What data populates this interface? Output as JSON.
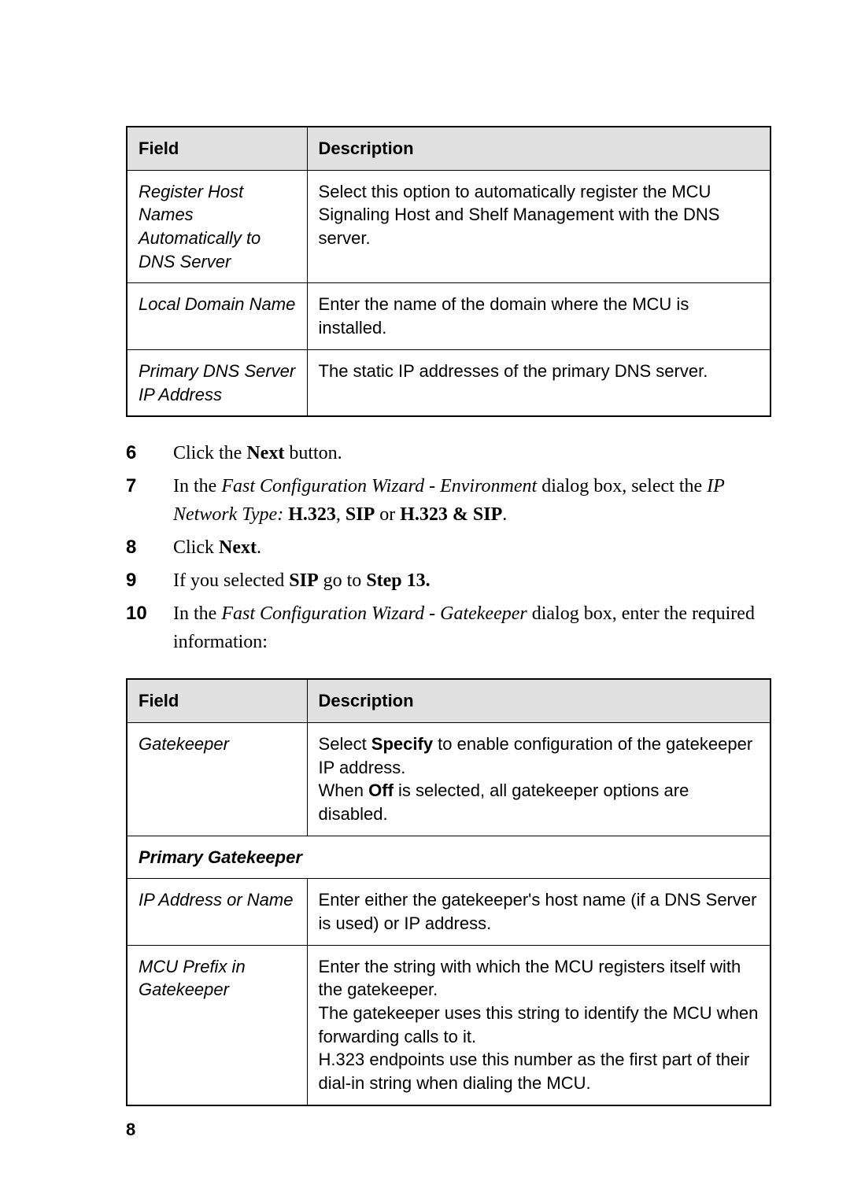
{
  "page": {
    "number": "8",
    "background_color": "#ffffff",
    "text_color": "#000000"
  },
  "table1": {
    "type": "table",
    "header_bg": "#e0e0e0",
    "border_color": "#000000",
    "columns": [
      "Field",
      "Description"
    ],
    "rows": [
      {
        "field": "Register Host Names Automatically to DNS Server",
        "desc_parts": [
          {
            "text": "Select this option to automatically register the MCU Signaling Host and Shelf Management with the DNS server."
          }
        ]
      },
      {
        "field": "Local Domain Name",
        "desc_parts": [
          {
            "text": "Enter the name of the domain where the MCU is installed."
          }
        ]
      },
      {
        "field": "Primary DNS Server IP Address",
        "desc_parts": [
          {
            "text": "The static IP addresses of the primary DNS server."
          }
        ]
      }
    ]
  },
  "steps": [
    {
      "num": "6",
      "parts": [
        {
          "text": "Click the "
        },
        {
          "text": "Next",
          "bold": true
        },
        {
          "text": " button."
        }
      ]
    },
    {
      "num": "7",
      "parts": [
        {
          "text": "In the "
        },
        {
          "text": "Fast Configuration Wizard - Environment",
          "italic": true
        },
        {
          "text": " dialog box, select the "
        },
        {
          "text": "IP Network Type:",
          "italic": true
        },
        {
          "text": " "
        },
        {
          "text": "H.323",
          "bold": true
        },
        {
          "text": ", "
        },
        {
          "text": "SIP",
          "bold": true
        },
        {
          "text": " or "
        },
        {
          "text": "H.323 & SIP",
          "bold": true
        },
        {
          "text": "."
        }
      ]
    },
    {
      "num": "8",
      "parts": [
        {
          "text": "Click "
        },
        {
          "text": "Next",
          "bold": true
        },
        {
          "text": "."
        }
      ]
    },
    {
      "num": "9",
      "parts": [
        {
          "text": "If you selected "
        },
        {
          "text": "SIP",
          "bold": true
        },
        {
          "text": " go to "
        },
        {
          "text": "Step 13.",
          "bold": true
        }
      ]
    },
    {
      "num": "10",
      "parts": [
        {
          "text": "In the "
        },
        {
          "text": "Fast Configuration Wizard - Gatekeeper",
          "italic": true
        },
        {
          "text": " dialog box, enter the required information:"
        }
      ]
    }
  ],
  "table2": {
    "type": "table",
    "header_bg": "#e0e0e0",
    "border_color": "#000000",
    "columns": [
      "Field",
      "Description"
    ],
    "section_label": "Primary Gatekeeper",
    "rows_a": [
      {
        "field": "Gatekeeper",
        "desc_parts": [
          {
            "text": "Select "
          },
          {
            "text": "Specify",
            "bold_sans": true
          },
          {
            "text": " to enable configuration of the gatekeeper IP address."
          },
          {
            "br": true
          },
          {
            "text": "When "
          },
          {
            "text": "Off",
            "bold_sans": true
          },
          {
            "text": " is selected, all gatekeeper options are disabled."
          }
        ]
      }
    ],
    "rows_b": [
      {
        "field": "IP Address or Name",
        "desc_parts": [
          {
            "text": "Enter either the gatekeeper's host name (if a DNS Server is used) or IP address."
          }
        ]
      },
      {
        "field": "MCU Prefix in Gatekeeper",
        "desc_parts": [
          {
            "text": "Enter the string with which the MCU registers itself with the gatekeeper."
          },
          {
            "br": true
          },
          {
            "text": "The gatekeeper uses this string to identify the MCU when forwarding calls to it."
          },
          {
            "br": true
          },
          {
            "text": "H.323 endpoints use this number as the first part of their dial-in string when dialing the MCU."
          }
        ]
      }
    ]
  }
}
